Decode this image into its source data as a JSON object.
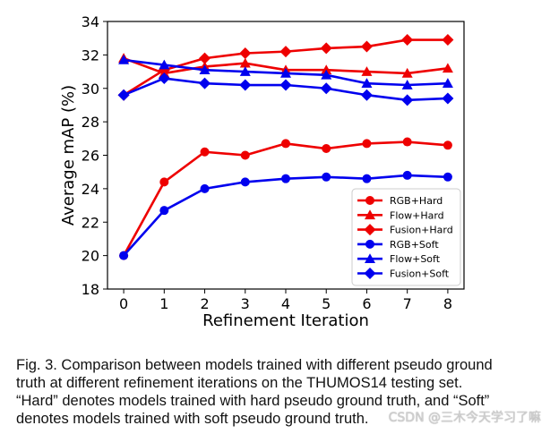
{
  "chart_data": {
    "type": "line",
    "title": "",
    "xlabel": "Refinement Iteration",
    "ylabel": "Average mAP (%)",
    "x": [
      0,
      1,
      2,
      3,
      4,
      5,
      6,
      7,
      8
    ],
    "xticks": [
      "0",
      "1",
      "2",
      "3",
      "4",
      "5",
      "6",
      "7",
      "8"
    ],
    "yticks": [
      "18",
      "20",
      "22",
      "24",
      "26",
      "28",
      "30",
      "32",
      "34"
    ],
    "ylim": [
      18,
      34
    ],
    "xlim": [
      -0.4,
      8.4
    ],
    "grid": false,
    "legend_position": "lower-right",
    "series": [
      {
        "name": "RGB+Hard",
        "color": "#ee0000",
        "marker": "circle",
        "values": [
          20.0,
          24.4,
          26.2,
          26.0,
          26.7,
          26.4,
          26.7,
          26.8,
          26.6
        ]
      },
      {
        "name": "Flow+Hard",
        "color": "#ee0000",
        "marker": "triangle",
        "values": [
          31.8,
          30.9,
          31.3,
          31.5,
          31.1,
          31.1,
          31.0,
          30.9,
          31.2
        ]
      },
      {
        "name": "Fusion+Hard",
        "color": "#ee0000",
        "marker": "diamond",
        "values": [
          29.6,
          31.1,
          31.8,
          32.1,
          32.2,
          32.4,
          32.5,
          32.9,
          32.9
        ]
      },
      {
        "name": "RGB+Soft",
        "color": "#0000ee",
        "marker": "circle",
        "values": [
          20.0,
          22.7,
          24.0,
          24.4,
          24.6,
          24.7,
          24.6,
          24.8,
          24.7
        ]
      },
      {
        "name": "Flow+Soft",
        "color": "#0000ee",
        "marker": "triangle",
        "values": [
          31.7,
          31.4,
          31.1,
          31.0,
          30.9,
          30.8,
          30.3,
          30.2,
          30.3
        ]
      },
      {
        "name": "Fusion+Soft",
        "color": "#0000ee",
        "marker": "diamond",
        "values": [
          29.6,
          30.6,
          30.3,
          30.2,
          30.2,
          30.0,
          29.6,
          29.3,
          29.4
        ]
      }
    ]
  },
  "caption": {
    "lines": [
      "Fig. 3. Comparison between models trained with different pseudo ground",
      "truth at different refinement iterations on the THUMOS14 testing set.",
      "“Hard” denotes models trained with hard pseudo ground truth, and “Soft”",
      "denotes models trained with soft pseudo ground truth."
    ]
  },
  "watermark": "CSDN @三木今天学习了嘛"
}
